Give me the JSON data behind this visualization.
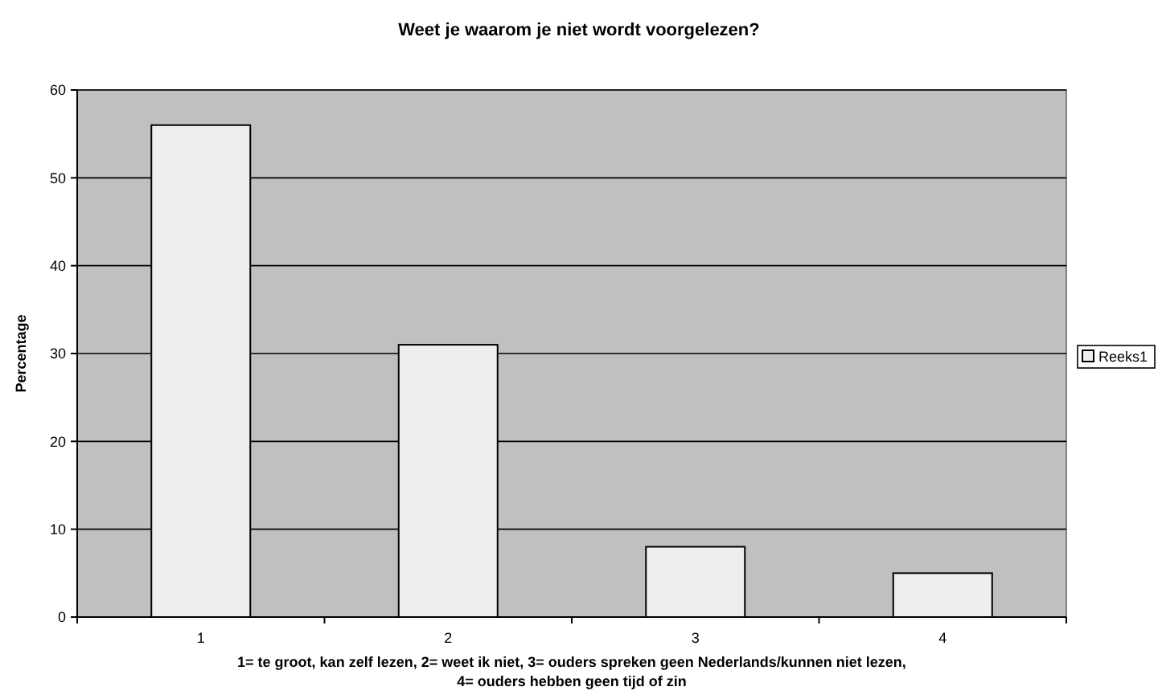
{
  "chart_data": {
    "type": "bar",
    "title": "Weet je waarom je niet wordt voorgelezen?",
    "xlabel": "1= te groot, kan zelf lezen, 2= weet ik niet, 3= ouders spreken geen Nederlands/kunnen niet lezen, 4= ouders hebben geen tijd of zin",
    "ylabel": "Percentage",
    "categories": [
      "1",
      "2",
      "3",
      "4"
    ],
    "series": [
      {
        "name": "Reeks1",
        "color": "#eeeeee",
        "values": [
          56,
          31,
          8,
          5
        ]
      }
    ],
    "ylim": [
      0,
      60
    ],
    "yticks": [
      0,
      10,
      20,
      30,
      40,
      50,
      60
    ],
    "grid": "y",
    "legend": "right"
  }
}
